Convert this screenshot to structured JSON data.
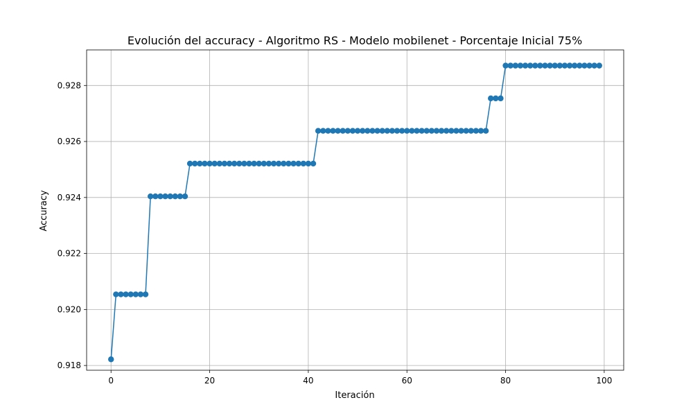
{
  "chart_data": {
    "type": "line",
    "title": "Evolución del accuracy - Algoritmo RS - Modelo mobilenet - Porcentaje Inicial 75%",
    "xlabel": "Iteración",
    "ylabel": "Accuracy",
    "xlim": [
      -4.95,
      103.95
    ],
    "ylim": [
      0.91783,
      0.92927
    ],
    "xticks": [
      0,
      20,
      40,
      60,
      80,
      100
    ],
    "xtick_labels": [
      "0",
      "20",
      "40",
      "60",
      "80",
      "100"
    ],
    "yticks": [
      0.918,
      0.92,
      0.922,
      0.924,
      0.926,
      0.928
    ],
    "ytick_labels": [
      "0.918",
      "0.920",
      "0.922",
      "0.924",
      "0.926",
      "0.928"
    ],
    "grid": true,
    "marker": "circle",
    "series": [
      {
        "color": "#1f77b4",
        "steps": [
          {
            "from": 0,
            "to": 0,
            "value": 0.91822
          },
          {
            "from": 1,
            "to": 7,
            "value": 0.92054
          },
          {
            "from": 8,
            "to": 15,
            "value": 0.92404
          },
          {
            "from": 16,
            "to": 41,
            "value": 0.92521
          },
          {
            "from": 42,
            "to": 76,
            "value": 0.92638
          },
          {
            "from": 77,
            "to": 79,
            "value": 0.92754
          },
          {
            "from": 80,
            "to": 99,
            "value": 0.92871
          }
        ]
      }
    ]
  }
}
